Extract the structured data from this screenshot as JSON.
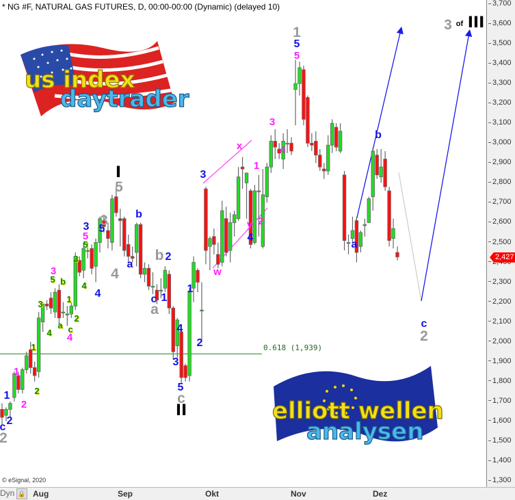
{
  "header": {
    "title": "* NG #F, NATURAL GAS FUTURES, D, 00:00-00:00 (Dynamic) (delayed 10)"
  },
  "footer": {
    "copyright": "© eSignal, 2020",
    "dyn_label": "Dyn",
    "lock_icon": "lock-icon"
  },
  "logos": {
    "top": {
      "line1": "us index",
      "line2": "daytrader",
      "colors": {
        "line1": "#f2e01a",
        "line2": "#4cb8e8"
      }
    },
    "bottom": {
      "line1": "elliott wellen",
      "line2": "analysen",
      "colors": {
        "line1": "#f2e01a",
        "line2": "#4cb8e8",
        "flag": "#1b2f9e"
      }
    }
  },
  "colors": {
    "up": "#22dd22",
    "down": "#ff1010",
    "wick": "#666666",
    "fib_line": "#1a8a1a",
    "trend_blue": "#1a1aee",
    "channel": "#ff40ff",
    "projection": "#cccccc",
    "last_price_badge": "#ff0000"
  },
  "fib": {
    "label": "0.618 (1,939)",
    "value": 1.939
  },
  "last_price": {
    "label": "2,427",
    "value": 2.427
  },
  "wave_labels": [
    {
      "text": "c",
      "color": "blue"
    },
    {
      "text": "2",
      "color": "gray"
    },
    {
      "text": "2",
      "color": "blue"
    },
    {
      "text": "1",
      "color": "blue"
    },
    {
      "text": "2",
      "color": "magenta"
    },
    {
      "text": "1",
      "color": "magenta"
    },
    {
      "text": "2",
      "color": "green"
    },
    {
      "text": "1",
      "color": "green"
    },
    {
      "text": "3",
      "color": "green"
    },
    {
      "text": "4",
      "color": "green"
    },
    {
      "text": "3",
      "color": "magenta"
    },
    {
      "text": "5",
      "color": "green"
    },
    {
      "text": "b",
      "color": "green"
    },
    {
      "text": "a",
      "color": "green"
    },
    {
      "text": "1",
      "color": "green"
    },
    {
      "text": "c",
      "color": "green"
    },
    {
      "text": "4",
      "color": "magenta"
    },
    {
      "text": "2",
      "color": "green"
    },
    {
      "text": "3",
      "color": "green"
    },
    {
      "text": "5",
      "color": "green"
    },
    {
      "text": "5",
      "color": "magenta"
    },
    {
      "text": "3",
      "color": "blue"
    },
    {
      "text": "4",
      "color": "green"
    },
    {
      "text": "4",
      "color": "blue"
    },
    {
      "text": "5",
      "color": "blue"
    },
    {
      "text": "3",
      "color": "gray"
    },
    {
      "text": "4",
      "color": "gray"
    },
    {
      "text": "I",
      "color": "black"
    },
    {
      "text": "5",
      "color": "gray"
    },
    {
      "text": "b",
      "color": "blue"
    },
    {
      "text": "a",
      "color": "blue"
    },
    {
      "text": "b",
      "color": "gray"
    },
    {
      "text": "2",
      "color": "blue"
    },
    {
      "text": "c",
      "color": "blue"
    },
    {
      "text": "1",
      "color": "blue"
    },
    {
      "text": "a",
      "color": "gray"
    },
    {
      "text": "1",
      "color": "blue"
    },
    {
      "text": "2",
      "color": "blue"
    },
    {
      "text": "4",
      "color": "blue"
    },
    {
      "text": "3",
      "color": "blue"
    },
    {
      "text": "5",
      "color": "blue"
    },
    {
      "text": "c",
      "color": "gray"
    },
    {
      "text": "II",
      "color": "black"
    },
    {
      "text": "3",
      "color": "blue"
    },
    {
      "text": "w",
      "color": "magenta"
    },
    {
      "text": "x",
      "color": "magenta"
    },
    {
      "text": "1",
      "color": "magenta"
    },
    {
      "text": "y",
      "color": "magenta"
    },
    {
      "text": "2",
      "color": "magenta"
    },
    {
      "text": "4",
      "color": "blue"
    },
    {
      "text": "3",
      "color": "magenta"
    },
    {
      "text": "4",
      "color": "magenta"
    },
    {
      "text": "1",
      "color": "gray"
    },
    {
      "text": "5",
      "color": "blue"
    },
    {
      "text": "5",
      "color": "magenta"
    },
    {
      "text": "b",
      "color": "blue"
    },
    {
      "text": "a",
      "color": "blue"
    },
    {
      "text": "c",
      "color": "blue"
    },
    {
      "text": "2",
      "color": "gray"
    },
    {
      "text": "3",
      "color": "gray"
    },
    {
      "text": "of",
      "color": "black"
    },
    {
      "text": "III",
      "color": "black"
    }
  ],
  "chart_data": {
    "type": "candlestick",
    "title": "* NG #F, NATURAL GAS FUTURES, D, 00:00-00:00 (Dynamic) (delayed 10)",
    "x_tick_labels": [
      "Aug",
      "Sep",
      "Okt",
      "Nov",
      "Dez"
    ],
    "ylim": [
      1.3,
      3.7
    ],
    "y_tick_step": 0.1,
    "y_axis_side": "right",
    "grid": false,
    "ohlc": [
      [
        1.66,
        1.69,
        1.58,
        1.62
      ],
      [
        1.63,
        1.67,
        1.6,
        1.66
      ],
      [
        1.66,
        1.7,
        1.62,
        1.69
      ],
      [
        1.72,
        1.85,
        1.7,
        1.84
      ],
      [
        1.83,
        1.85,
        1.74,
        1.76
      ],
      [
        1.76,
        1.87,
        1.74,
        1.86
      ],
      [
        1.86,
        1.95,
        1.84,
        1.93
      ],
      [
        1.96,
        2.0,
        1.84,
        1.87
      ],
      [
        1.87,
        1.9,
        1.8,
        1.83
      ],
      [
        1.85,
        2.15,
        1.82,
        2.12
      ],
      [
        2.1,
        2.2,
        2.05,
        2.19
      ],
      [
        2.19,
        2.21,
        2.16,
        2.18
      ],
      [
        2.22,
        2.25,
        2.14,
        2.17
      ],
      [
        2.15,
        2.27,
        2.12,
        2.25
      ],
      [
        2.26,
        2.29,
        2.09,
        2.12
      ],
      [
        2.15,
        2.2,
        2.12,
        2.15
      ],
      [
        2.14,
        2.18,
        2.08,
        2.14
      ],
      [
        2.14,
        2.2,
        2.12,
        2.18
      ],
      [
        2.18,
        2.45,
        2.16,
        2.43
      ],
      [
        2.41,
        2.43,
        2.33,
        2.35
      ],
      [
        2.36,
        2.5,
        2.32,
        2.47
      ],
      [
        2.46,
        2.5,
        2.42,
        2.46
      ],
      [
        2.47,
        2.49,
        2.34,
        2.37
      ],
      [
        2.38,
        2.52,
        2.3,
        2.5
      ],
      [
        2.5,
        2.63,
        2.45,
        2.62
      ],
      [
        2.61,
        2.64,
        2.55,
        2.58
      ],
      [
        2.56,
        2.6,
        2.47,
        2.52
      ],
      [
        2.5,
        2.74,
        2.46,
        2.72
      ],
      [
        2.73,
        2.78,
        2.63,
        2.65
      ],
      [
        2.62,
        2.67,
        2.48,
        2.61
      ],
      [
        2.62,
        2.63,
        2.43,
        2.46
      ],
      [
        2.49,
        2.54,
        2.4,
        2.43
      ],
      [
        2.43,
        2.48,
        2.4,
        2.42
      ],
      [
        2.45,
        2.6,
        2.38,
        2.59
      ],
      [
        2.59,
        2.6,
        2.32,
        2.34
      ],
      [
        2.34,
        2.4,
        2.3,
        2.37
      ],
      [
        2.37,
        2.39,
        2.26,
        2.28
      ],
      [
        2.28,
        2.35,
        2.24,
        2.28
      ],
      [
        2.26,
        2.29,
        2.19,
        2.21
      ],
      [
        2.26,
        2.32,
        2.22,
        2.26
      ],
      [
        2.27,
        2.38,
        2.25,
        2.36
      ],
      [
        2.34,
        2.36,
        2.14,
        2.17
      ],
      [
        2.17,
        2.18,
        1.91,
        1.95
      ],
      [
        1.98,
        2.12,
        1.92,
        2.11
      ],
      [
        2.05,
        2.07,
        1.79,
        1.82
      ],
      [
        1.88,
        1.89,
        1.8,
        1.82
      ],
      [
        1.83,
        2.27,
        1.8,
        2.25
      ],
      [
        2.27,
        2.43,
        2.2,
        2.4
      ],
      [
        2.36,
        2.37,
        2.25,
        2.3
      ],
      [
        2.16,
        2.3,
        2.0,
        2.16
      ],
      [
        2.77,
        2.78,
        2.39,
        2.46
      ],
      [
        2.48,
        2.53,
        2.36,
        2.52
      ],
      [
        2.53,
        2.57,
        2.44,
        2.49
      ],
      [
        2.44,
        2.5,
        2.37,
        2.39
      ],
      [
        2.4,
        2.71,
        2.38,
        2.66
      ],
      [
        2.62,
        2.68,
        2.43,
        2.45
      ],
      [
        2.46,
        2.65,
        2.4,
        2.6
      ],
      [
        2.6,
        2.66,
        2.53,
        2.64
      ],
      [
        2.62,
        2.88,
        2.61,
        2.83
      ],
      [
        2.88,
        2.93,
        2.77,
        2.87
      ],
      [
        2.8,
        2.84,
        2.62,
        2.85
      ],
      [
        2.76,
        2.77,
        2.47,
        2.49
      ],
      [
        2.5,
        2.79,
        2.49,
        2.76
      ],
      [
        2.76,
        2.84,
        2.53,
        2.76
      ],
      [
        2.48,
        2.87,
        2.47,
        2.74
      ],
      [
        2.73,
        2.9,
        2.7,
        2.88
      ],
      [
        2.88,
        3.04,
        2.85,
        3.01
      ],
      [
        3.01,
        3.07,
        2.92,
        2.98
      ],
      [
        2.97,
        3.0,
        2.92,
        2.95
      ],
      [
        2.92,
        3.05,
        2.87,
        3.01
      ],
      [
        3.0,
        3.07,
        2.95,
        3.0
      ],
      [
        3.0,
        3.03,
        2.94,
        2.96
      ],
      [
        3.27,
        3.42,
        3.09,
        3.3
      ],
      [
        3.3,
        3.41,
        3.24,
        3.38
      ],
      [
        3.37,
        3.39,
        3.09,
        3.12
      ],
      [
        3.23,
        3.24,
        2.98,
        3.0
      ],
      [
        3.0,
        3.05,
        2.96,
        2.99
      ],
      [
        3.01,
        3.06,
        2.9,
        2.94
      ],
      [
        2.94,
        2.97,
        2.86,
        2.88
      ],
      [
        2.87,
        2.9,
        2.82,
        2.86
      ],
      [
        2.86,
        3.04,
        2.84,
        2.99
      ],
      [
        2.99,
        3.12,
        2.95,
        3.1
      ],
      [
        3.08,
        3.1,
        2.96,
        2.98
      ],
      [
        2.96,
        3.1,
        2.95,
        3.06
      ],
      [
        2.84,
        2.86,
        2.46,
        2.51
      ],
      [
        2.5,
        2.54,
        2.44,
        2.5
      ],
      [
        2.52,
        2.63,
        2.5,
        2.56
      ],
      [
        2.61,
        2.63,
        2.4,
        2.45
      ],
      [
        2.48,
        2.56,
        2.45,
        2.55
      ],
      [
        2.59,
        2.62,
        2.53,
        2.59
      ],
      [
        2.6,
        2.73,
        2.6,
        2.72
      ],
      [
        2.73,
        2.98,
        2.66,
        2.96
      ],
      [
        2.94,
        2.97,
        2.82,
        2.84
      ],
      [
        2.83,
        2.97,
        2.8,
        2.88
      ],
      [
        2.92,
        2.96,
        2.76,
        2.78
      ],
      [
        2.76,
        2.78,
        2.48,
        2.51
      ],
      [
        2.52,
        2.62,
        2.47,
        2.57
      ],
      [
        2.45,
        2.48,
        2.41,
        2.427
      ]
    ],
    "horizontal_lines": [
      {
        "label": "0.618 (1,939)",
        "value": 1.939
      }
    ],
    "projections": [
      "blue up-arrow from wave a low toward b and beyond",
      "blue up-arrow from projected c/2 low toward 3 of III"
    ]
  }
}
